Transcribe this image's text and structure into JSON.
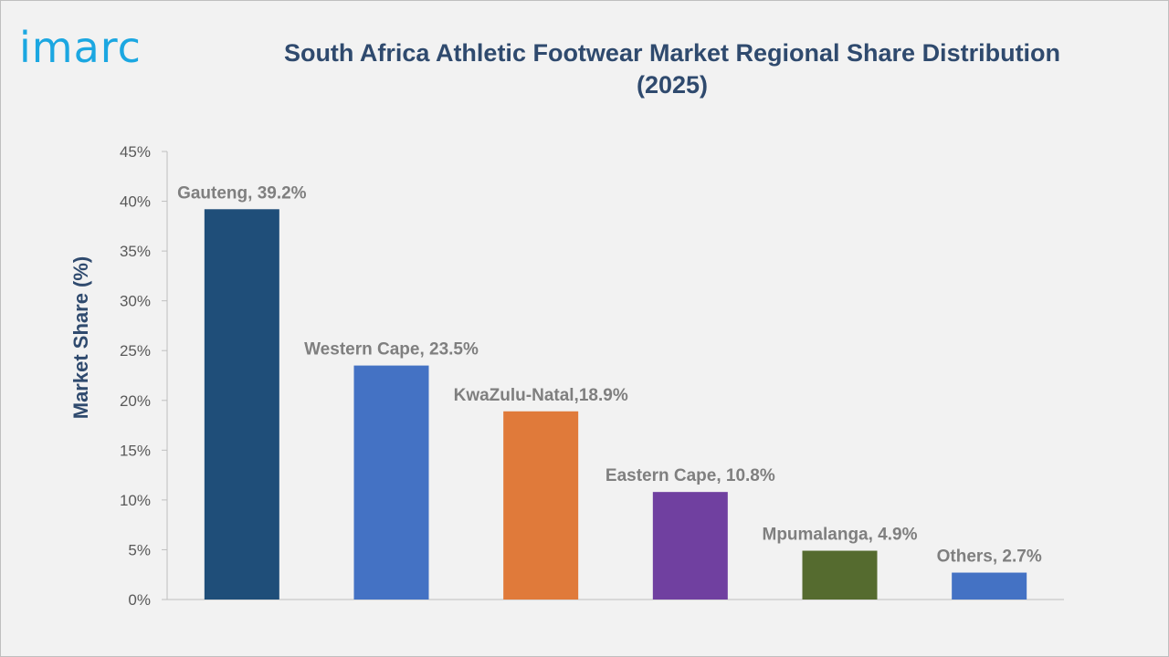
{
  "logo": {
    "text": "imarc",
    "color": "#1ba7e1"
  },
  "chart_data": {
    "type": "bar",
    "title": "South Africa Athletic Footwear Market Regional Share Distribution (2025)",
    "xlabel": "",
    "ylabel": "Market Share (%)",
    "ylim": [
      0,
      45
    ],
    "yticks": [
      0,
      5,
      10,
      15,
      20,
      25,
      30,
      35,
      40,
      45
    ],
    "ytick_labels": [
      "0%",
      "5%",
      "10%",
      "15%",
      "20%",
      "25%",
      "30%",
      "35%",
      "40%",
      "45%"
    ],
    "grid": false,
    "categories": [
      "Gauteng",
      "Western Cape",
      "KwaZulu-Natal",
      "Eastern Cape",
      "Mpumalanga",
      "Others"
    ],
    "values": [
      39.2,
      23.5,
      18.9,
      10.8,
      4.9,
      2.7
    ],
    "data_labels": [
      "Gauteng, 39.2%",
      "Western Cape, 23.5%",
      "KwaZulu-Natal,18.9%",
      "Eastern Cape, 10.8%",
      "Mpumalanga, 4.9%",
      "Others, 2.7%"
    ],
    "colors": [
      "#1f4e79",
      "#4472c4",
      "#e07a3a",
      "#7040a0",
      "#556b2f",
      "#4472c4"
    ]
  }
}
